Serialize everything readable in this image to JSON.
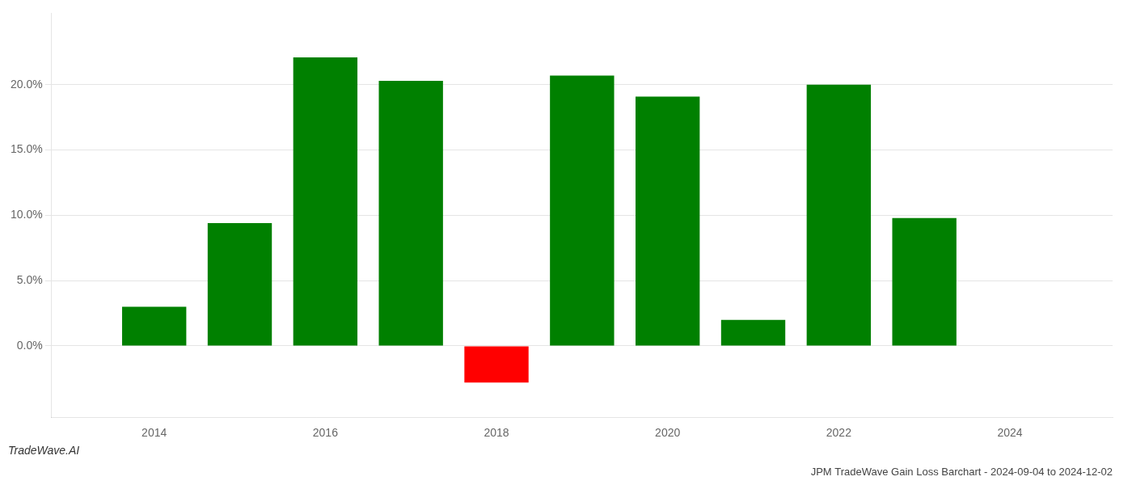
{
  "chart_data": {
    "type": "bar",
    "title": "JPM TradeWave Gain Loss Barchart - 2024-09-04 to 2024-12-02",
    "annotations": [
      "TradeWave.AI"
    ],
    "x": [
      2014,
      2015,
      2016,
      2017,
      2018,
      2019,
      2020,
      2021,
      2022,
      2023
    ],
    "values": [
      0.03,
      0.094,
      0.221,
      0.203,
      -0.028,
      0.207,
      0.191,
      0.02,
      0.2,
      0.098
    ],
    "colors": [
      "#008000",
      "#008000",
      "#008000",
      "#008000",
      "#ff0000",
      "#008000",
      "#008000",
      "#008000",
      "#008000",
      "#008000"
    ],
    "xlim": [
      2012.8,
      2025.2
    ],
    "xticks": [
      2014,
      2016,
      2018,
      2020,
      2022,
      2024
    ],
    "ylim": [
      -0.055,
      0.255
    ],
    "yticks": [
      {
        "value": 0.0,
        "label": "0.0%"
      },
      {
        "value": 0.05,
        "label": "5.0%"
      },
      {
        "value": 0.1,
        "label": "10.0%"
      },
      {
        "value": 0.15,
        "label": "15.0%"
      },
      {
        "value": 0.2,
        "label": "20.0%"
      }
    ],
    "grid": "y"
  }
}
